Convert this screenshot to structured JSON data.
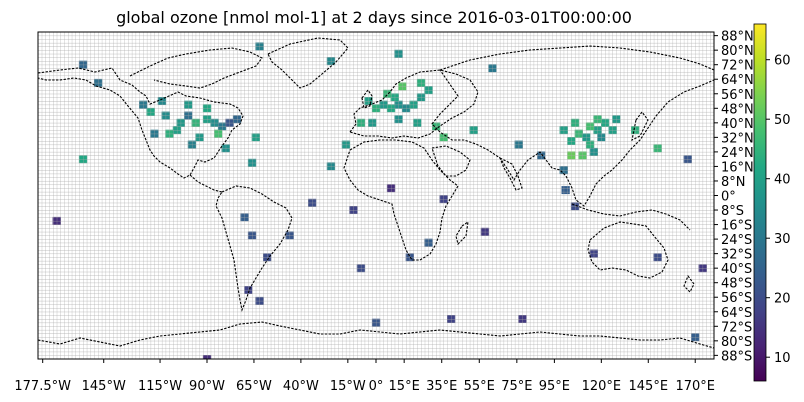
{
  "chart_data": {
    "type": "heatmap",
    "title": "global ozone [nmol mol-1] at 2 days since 2016-03-01T00:00:00",
    "xlim": [
      -180,
      180
    ],
    "ylim": [
      -90,
      90
    ],
    "grid": true,
    "grid_resolution_deg": 2,
    "xtick_labels": [
      "177.5°W",
      "145°W",
      "115°W",
      "90°W",
      "65°W",
      "40°W",
      "15°W",
      "0°",
      "15°E",
      "35°E",
      "55°E",
      "75°E",
      "95°E",
      "120°E",
      "145°E",
      "170°E"
    ],
    "xtick_values": [
      -177.5,
      -145,
      -115,
      -90,
      -65,
      -40,
      -15,
      0,
      15,
      35,
      55,
      75,
      95,
      120,
      145,
      170
    ],
    "ytick_labels": [
      "88°N",
      "80°N",
      "72°N",
      "64°N",
      "56°N",
      "48°N",
      "40°N",
      "32°N",
      "24°N",
      "16°N",
      "8°N",
      "0°",
      "8°S",
      "16°S",
      "24°S",
      "32°S",
      "40°S",
      "48°S",
      "56°S",
      "64°S",
      "72°S",
      "80°S",
      "88°S"
    ],
    "ytick_values": [
      88,
      80,
      72,
      64,
      56,
      48,
      40,
      32,
      24,
      16,
      8,
      0,
      -8,
      -16,
      -24,
      -32,
      -40,
      -48,
      -56,
      -64,
      -72,
      -80,
      -88
    ],
    "colorbar": {
      "colormap": "viridis",
      "vmin": 6,
      "vmax": 66,
      "tick_labels": [
        "10",
        "20",
        "30",
        "40",
        "50",
        "60"
      ],
      "tick_values": [
        10,
        20,
        30,
        40,
        50,
        60
      ]
    },
    "station_values": [
      {
        "lon": -120,
        "lat": 46,
        "value": 42
      },
      {
        "lon": -112,
        "lat": 44,
        "value": 35
      },
      {
        "lon": -104,
        "lat": 40,
        "value": 38
      },
      {
        "lon": -100,
        "lat": 44,
        "value": 28
      },
      {
        "lon": -96,
        "lat": 40,
        "value": 45
      },
      {
        "lon": -90,
        "lat": 42,
        "value": 40
      },
      {
        "lon": -86,
        "lat": 40,
        "value": 35
      },
      {
        "lon": -82,
        "lat": 38,
        "value": 30
      },
      {
        "lon": -78,
        "lat": 40,
        "value": 22
      },
      {
        "lon": -74,
        "lat": 42,
        "value": 26
      },
      {
        "lon": -84,
        "lat": 34,
        "value": 48
      },
      {
        "lon": -110,
        "lat": 34,
        "value": 44
      },
      {
        "lon": -118,
        "lat": 34,
        "value": 30
      },
      {
        "lon": -106,
        "lat": 36,
        "value": 40
      },
      {
        "lon": -94,
        "lat": 32,
        "value": 38
      },
      {
        "lon": -98,
        "lat": 28,
        "value": 32
      },
      {
        "lon": -80,
        "lat": 26,
        "value": 36
      },
      {
        "lon": -124,
        "lat": 50,
        "value": 30
      },
      {
        "lon": -114,
        "lat": 52,
        "value": 34
      },
      {
        "lon": -100,
        "lat": 50,
        "value": 38
      },
      {
        "lon": -90,
        "lat": 48,
        "value": 42
      },
      {
        "lon": -148,
        "lat": 62,
        "value": 28
      },
      {
        "lon": -156,
        "lat": 20,
        "value": 42
      },
      {
        "lon": -66,
        "lat": 18,
        "value": 36
      },
      {
        "lon": -4,
        "lat": 52,
        "value": 40
      },
      {
        "lon": 0,
        "lat": 48,
        "value": 44
      },
      {
        "lon": 4,
        "lat": 50,
        "value": 38
      },
      {
        "lon": 8,
        "lat": 48,
        "value": 42
      },
      {
        "lon": 12,
        "lat": 50,
        "value": 36
      },
      {
        "lon": 16,
        "lat": 48,
        "value": 34
      },
      {
        "lon": 20,
        "lat": 50,
        "value": 40
      },
      {
        "lon": 24,
        "lat": 54,
        "value": 38
      },
      {
        "lon": 10,
        "lat": 54,
        "value": 42
      },
      {
        "lon": 6,
        "lat": 56,
        "value": 46
      },
      {
        "lon": 14,
        "lat": 60,
        "value": 50
      },
      {
        "lon": 24,
        "lat": 62,
        "value": 44
      },
      {
        "lon": 28,
        "lat": 58,
        "value": 40
      },
      {
        "lon": -8,
        "lat": 40,
        "value": 44
      },
      {
        "lon": -2,
        "lat": 40,
        "value": 38
      },
      {
        "lon": 12,
        "lat": 42,
        "value": 36
      },
      {
        "lon": 22,
        "lat": 40,
        "value": 40
      },
      {
        "lon": 32,
        "lat": 38,
        "value": 46
      },
      {
        "lon": 36,
        "lat": 32,
        "value": 48
      },
      {
        "lon": 52,
        "lat": 36,
        "value": 40
      },
      {
        "lon": 76,
        "lat": 28,
        "value": 30
      },
      {
        "lon": 88,
        "lat": 22,
        "value": 26
      },
      {
        "lon": 100,
        "lat": 36,
        "value": 40
      },
      {
        "lon": 104,
        "lat": 30,
        "value": 42
      },
      {
        "lon": 108,
        "lat": 34,
        "value": 46
      },
      {
        "lon": 112,
        "lat": 32,
        "value": 38
      },
      {
        "lon": 114,
        "lat": 28,
        "value": 44
      },
      {
        "lon": 116,
        "lat": 24,
        "value": 36
      },
      {
        "lon": 118,
        "lat": 36,
        "value": 40
      },
      {
        "lon": 120,
        "lat": 32,
        "value": 34
      },
      {
        "lon": 122,
        "lat": 40,
        "value": 42
      },
      {
        "lon": 110,
        "lat": 22,
        "value": 50
      },
      {
        "lon": 104,
        "lat": 22,
        "value": 52
      },
      {
        "lon": 106,
        "lat": 40,
        "value": 44
      },
      {
        "lon": 114,
        "lat": 38,
        "value": 48
      },
      {
        "lon": 118,
        "lat": 42,
        "value": 46
      },
      {
        "lon": 126,
        "lat": 36,
        "value": 40
      },
      {
        "lon": 128,
        "lat": 42,
        "value": 38
      },
      {
        "lon": 138,
        "lat": 36,
        "value": 44
      },
      {
        "lon": 150,
        "lat": 26,
        "value": 46
      },
      {
        "lon": 100,
        "lat": 14,
        "value": 28
      },
      {
        "lon": 101,
        "lat": 3,
        "value": 24
      },
      {
        "lon": 106,
        "lat": -6,
        "value": 20
      },
      {
        "lon": 116,
        "lat": -32,
        "value": 18
      },
      {
        "lon": 150,
        "lat": -34,
        "value": 20
      },
      {
        "lon": 174,
        "lat": -40,
        "value": 16
      },
      {
        "lon": -70,
        "lat": -12,
        "value": 24
      },
      {
        "lon": -66,
        "lat": -22,
        "value": 22
      },
      {
        "lon": -58,
        "lat": -34,
        "value": 20
      },
      {
        "lon": -68,
        "lat": -52,
        "value": 18
      },
      {
        "lon": -62,
        "lat": -58,
        "value": 20
      },
      {
        "lon": -46,
        "lat": -22,
        "value": 22
      },
      {
        "lon": 28,
        "lat": -26,
        "value": 24
      },
      {
        "lon": 18,
        "lat": -34,
        "value": 22
      },
      {
        "lon": 36,
        "lat": -2,
        "value": 18
      },
      {
        "lon": 58,
        "lat": -20,
        "value": 16
      },
      {
        "lon": -16,
        "lat": 28,
        "value": 38
      },
      {
        "lon": -24,
        "lat": 16,
        "value": 34
      },
      {
        "lon": 8,
        "lat": 4,
        "value": 14
      },
      {
        "lon": -34,
        "lat": -4,
        "value": 20
      },
      {
        "lon": -170,
        "lat": -14,
        "value": 14
      },
      {
        "lon": -156,
        "lat": 72,
        "value": 26
      },
      {
        "lon": -62,
        "lat": 82,
        "value": 32
      },
      {
        "lon": -24,
        "lat": 74,
        "value": 34
      },
      {
        "lon": 12,
        "lat": 78,
        "value": 36
      },
      {
        "lon": 62,
        "lat": 70,
        "value": 30
      },
      {
        "lon": -12,
        "lat": -8,
        "value": 18
      },
      {
        "lon": -8,
        "lat": -40,
        "value": 20
      },
      {
        "lon": -64,
        "lat": 32,
        "value": 40
      },
      {
        "lon": 166,
        "lat": 20,
        "value": 22
      },
      {
        "lon": 170,
        "lat": -78,
        "value": 24
      },
      {
        "lon": -90,
        "lat": -90,
        "value": 14
      },
      {
        "lon": 0,
        "lat": -70,
        "value": 22
      },
      {
        "lon": 40,
        "lat": -68,
        "value": 18
      },
      {
        "lon": 78,
        "lat": -68,
        "value": 16
      }
    ]
  }
}
